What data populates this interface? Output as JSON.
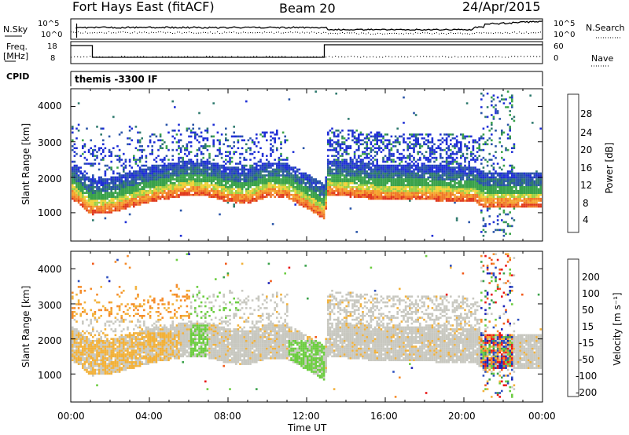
{
  "header": {
    "left": "Fort Hays East (fitACF)",
    "center": "Beam 20",
    "right": "24/Apr/2015"
  },
  "summary": {
    "nsky_label": "N.Sky",
    "nsky_ticks": [
      "10^5",
      "10^0"
    ],
    "nsearch_label": "N.Search",
    "freq_label_top": "Freq.",
    "freq_label_unit": "[MHz]",
    "freq_ticks": [
      "18",
      "8"
    ],
    "nave_label": "Nave",
    "nave_ticks": [
      "60",
      "0"
    ],
    "cpid_label": "CPID",
    "cpid_text": "themis -3300 IF"
  },
  "colors": {
    "power": [
      "#1f2fd6",
      "#2a55a8",
      "#2f7a6e",
      "#3aa24a",
      "#9ad046",
      "#f0d23a",
      "#f5a530",
      "#f07828",
      "#e03a1e"
    ],
    "velocity": [
      "#e81616",
      "#f25a1a",
      "#f58c2a",
      "#f2b13a",
      "#c8c8c0",
      "#6ccd40",
      "#3aa24a",
      "#2d4fbf",
      "#1a22b8"
    ]
  },
  "chart_data": [
    {
      "type": "heatmap",
      "name": "power",
      "ylabel": "Slant Range [km]",
      "xlabel": "",
      "yticks": [
        "4000",
        "3000",
        "2000",
        "1000"
      ],
      "ylim": [
        200,
        4500
      ],
      "xlim_hours": [
        0,
        24
      ],
      "colorbar": {
        "label": "Power [dB]",
        "ticks": [
          "28",
          "24",
          "20",
          "16",
          "12",
          "8",
          "4"
        ],
        "range": [
          0,
          32
        ]
      },
      "echo_band_center_km": [
        [
          0,
          1850
        ],
        [
          1,
          1400
        ],
        [
          2,
          1450
        ],
        [
          3,
          1600
        ],
        [
          4,
          1750
        ],
        [
          5,
          1850
        ],
        [
          6,
          1950
        ],
        [
          7,
          1900
        ],
        [
          8,
          1750
        ],
        [
          9,
          1700
        ],
        [
          10,
          1900
        ],
        [
          11,
          1850
        ],
        [
          12,
          1550
        ],
        [
          12.9,
          1250
        ],
        [
          13,
          1950
        ],
        [
          14,
          1900
        ],
        [
          16,
          1800
        ],
        [
          18,
          1800
        ],
        [
          20.5,
          1750
        ],
        [
          21,
          1600
        ],
        [
          24,
          1600
        ]
      ]
    },
    {
      "type": "heatmap",
      "name": "velocity",
      "ylabel": "Slant Range [km]",
      "xlabel": "Time UT",
      "yticks": [
        "4000",
        "3000",
        "2000",
        "1000"
      ],
      "xticks": [
        "00:00",
        "04:00",
        "08:00",
        "12:00",
        "16:00",
        "20:00",
        "00:00"
      ],
      "ylim": [
        200,
        4500
      ],
      "xlim_hours": [
        0,
        24
      ],
      "colorbar": {
        "label": "Velocity [m s⁻¹]",
        "ticks": [
          "200",
          "100",
          "50",
          "15",
          "-15",
          "-50",
          "-100",
          "-200"
        ]
      }
    }
  ]
}
